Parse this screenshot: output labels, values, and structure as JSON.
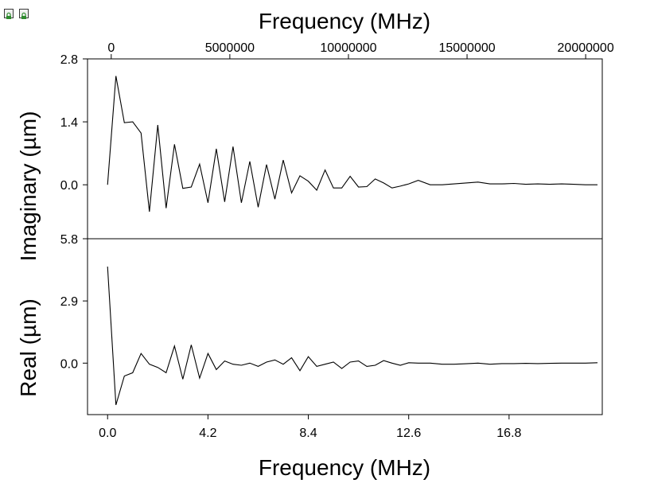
{
  "toolbar": {
    "icons": [
      {
        "name": "lock-icon",
        "color": "#2e8b2e"
      },
      {
        "name": "lock-icon",
        "color": "#2e8b2e"
      }
    ]
  },
  "chart_data": {
    "type": "line",
    "top_axis": {
      "label": "Frequency (MHz)",
      "ticks": [
        0,
        5000000,
        10000000,
        15000000,
        20000000
      ],
      "tick_labels": [
        "0",
        "5000000",
        "10000000",
        "15000000",
        "20000000"
      ],
      "range": [
        -1000000,
        20700000
      ]
    },
    "bottom_axis": {
      "label": "Frequency (MHz)",
      "ticks": [
        0,
        4.2,
        8.4,
        12.6,
        16.8
      ],
      "tick_labels": [
        "0.0",
        "4.2",
        "8.4",
        "12.6",
        "16.8"
      ],
      "range": [
        -0.84,
        20.7
      ]
    },
    "panels": [
      {
        "name": "Imaginary",
        "ylabel": "Imaginary (µm)",
        "ylim": [
          -1.2,
          2.8
        ],
        "yticks": [
          0.0,
          1.4,
          2.8
        ],
        "ytick_labels": [
          "0.0",
          "1.4",
          "2.8"
        ],
        "series": [
          {
            "x": [
              0.0,
              0.35,
              0.7,
              1.05,
              1.4,
              1.75,
              2.1,
              2.45,
              2.8,
              3.15,
              3.5,
              3.85,
              4.2,
              4.55,
              4.9,
              5.25,
              5.6,
              5.95,
              6.3,
              6.65,
              7.0,
              7.35,
              7.7,
              8.05,
              8.4,
              8.75,
              9.1,
              9.45,
              9.8,
              10.15,
              10.5,
              10.85,
              11.2,
              11.55,
              11.9,
              12.25,
              12.6,
              13.0,
              13.5,
              14.0,
              14.5,
              15.0,
              15.5,
              16.0,
              16.5,
              17.0,
              17.5,
              18.0,
              18.5,
              19.0,
              19.5,
              20.0,
              20.5
            ],
            "y": [
              0.0,
              2.42,
              1.38,
              1.4,
              1.15,
              -0.6,
              1.33,
              -0.52,
              0.9,
              -0.08,
              -0.05,
              0.46,
              -0.4,
              0.8,
              -0.38,
              0.85,
              -0.4,
              0.52,
              -0.5,
              0.45,
              -0.32,
              0.55,
              -0.18,
              0.2,
              0.08,
              -0.12,
              0.33,
              -0.07,
              -0.07,
              0.19,
              -0.05,
              -0.04,
              0.13,
              0.04,
              -0.07,
              -0.03,
              0.02,
              0.1,
              0.0,
              0.0,
              0.02,
              0.04,
              0.06,
              0.02,
              0.02,
              0.03,
              0.01,
              0.02,
              0.01,
              0.02,
              0.01,
              0.0,
              0.0
            ]
          }
        ]
      },
      {
        "name": "Real",
        "ylabel": "Real (µm)",
        "ylim": [
          -2.4,
          5.8
        ],
        "yticks": [
          0.0,
          2.9,
          5.8
        ],
        "ytick_labels": [
          "0.0",
          "2.9",
          "5.8"
        ],
        "series": [
          {
            "x": [
              0.0,
              0.35,
              0.7,
              1.05,
              1.4,
              1.75,
              2.1,
              2.45,
              2.8,
              3.15,
              3.5,
              3.85,
              4.2,
              4.55,
              4.9,
              5.25,
              5.6,
              5.95,
              6.3,
              6.65,
              7.0,
              7.35,
              7.7,
              8.05,
              8.4,
              8.75,
              9.1,
              9.45,
              9.8,
              10.15,
              10.5,
              10.85,
              11.2,
              11.55,
              11.9,
              12.25,
              12.6,
              13.0,
              13.5,
              14.0,
              14.5,
              15.0,
              15.5,
              16.0,
              16.5,
              17.0,
              17.5,
              18.0,
              18.5,
              19.0,
              19.5,
              20.0,
              20.5
            ],
            "y": [
              4.5,
              -1.95,
              -0.6,
              -0.45,
              0.45,
              -0.05,
              -0.2,
              -0.45,
              0.8,
              -0.75,
              0.85,
              -0.7,
              0.45,
              -0.3,
              0.1,
              -0.05,
              -0.1,
              0.0,
              -0.15,
              0.05,
              0.15,
              -0.05,
              0.25,
              -0.35,
              0.3,
              -0.15,
              -0.05,
              0.05,
              -0.25,
              0.05,
              0.1,
              -0.15,
              -0.1,
              0.12,
              0.0,
              -0.1,
              0.02,
              0.0,
              0.0,
              -0.05,
              -0.05,
              -0.03,
              0.0,
              -0.05,
              -0.02,
              -0.02,
              -0.01,
              -0.02,
              -0.01,
              0.0,
              0.0,
              0.0,
              0.02
            ]
          }
        ]
      }
    ]
  }
}
